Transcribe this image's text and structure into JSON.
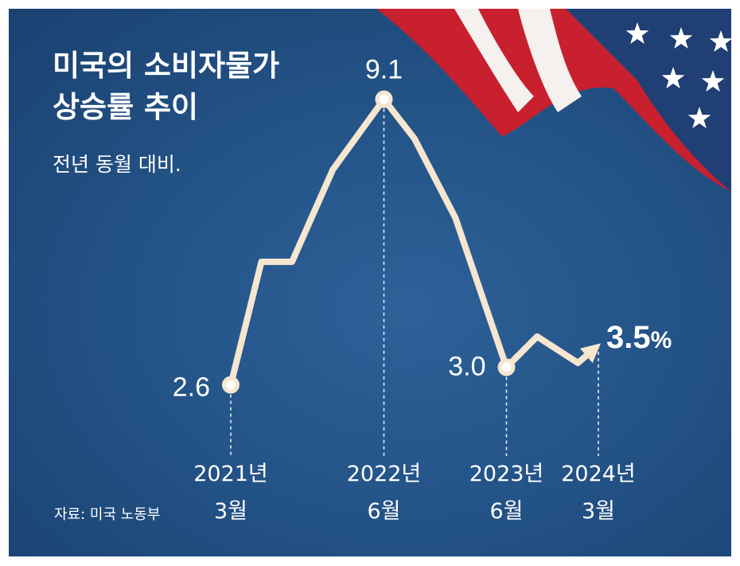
{
  "header": {
    "title_line1": "미국의 소비자물가",
    "title_line2": "상승률 추이",
    "subtitle": "전년 동월 대비."
  },
  "source": "자료: 미국 노동부",
  "colors": {
    "background": "#245488",
    "line": "#f6e6cf",
    "text": "#ffffff",
    "flag_red": "#c8202e",
    "flag_blue": "#1f3f75"
  },
  "decoration": {
    "icon": "us-flag-icon"
  },
  "chart_data": {
    "type": "line",
    "title": "미국의 소비자물가 상승률 추이",
    "subtitle": "전년 동월 대비.",
    "unit": "%",
    "x": [
      "2021-03",
      "2021-06",
      "2021-09",
      "2022-01",
      "2022-06",
      "2022-09",
      "2023-01",
      "2023-06",
      "2023-09",
      "2024-01",
      "2024-03"
    ],
    "values": [
      2.6,
      5.4,
      5.4,
      7.5,
      9.1,
      8.2,
      6.4,
      3.0,
      3.7,
      3.1,
      3.5
    ],
    "ylim": [
      0,
      10
    ],
    "xlim": [
      "2021-03",
      "2024-03"
    ],
    "x_tick_labels": [
      {
        "x": "2021-03",
        "year": "2021년",
        "month": "3월"
      },
      {
        "x": "2022-06",
        "year": "2022년",
        "month": "6월"
      },
      {
        "x": "2023-06",
        "year": "2023년",
        "month": "6월"
      },
      {
        "x": "2024-03",
        "year": "2024년",
        "month": "3월"
      }
    ],
    "annotations": [
      {
        "x": "2021-03",
        "label": "2.6",
        "marker": true
      },
      {
        "x": "2022-06",
        "label": "9.1",
        "marker": true
      },
      {
        "x": "2023-06",
        "label": "3.0",
        "marker": true
      },
      {
        "x": "2024-03",
        "label": "3.5",
        "suffix": "%",
        "arrow": true
      }
    ],
    "grid": false,
    "legend": "none"
  }
}
